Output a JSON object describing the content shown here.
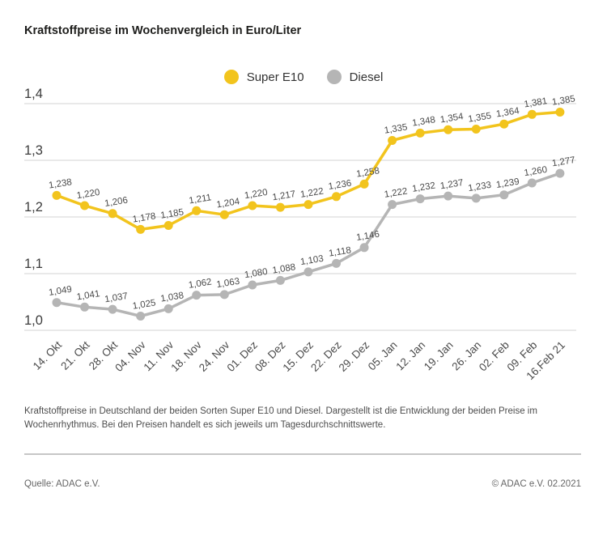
{
  "page": {
    "title": "Kraftstoffpreise im Wochenvergleich in Euro/Liter"
  },
  "legend": [
    {
      "label": "Super E10",
      "color": "#f2c41d"
    },
    {
      "label": "Diesel",
      "color": "#b5b5b5"
    }
  ],
  "chart_data": {
    "type": "line",
    "title": "Kraftstoffpreise im Wochenvergleich in Euro/Liter",
    "unit": "Euro/Liter",
    "categories": [
      "14. Okt",
      "21. Okt",
      "28. Okt",
      "04. Nov",
      "11. Nov",
      "18. Nov",
      "24. Nov",
      "01. Dez",
      "08. Dez",
      "15. Dez",
      "22. Dez",
      "29. Dez",
      "05. Jan",
      "12. Jan",
      "19. Jan",
      "26. Jan",
      "02. Feb",
      "09. Feb",
      "16.Feb 21"
    ],
    "series": [
      {
        "name": "Super E10",
        "color": "#f2c41d",
        "values": [
          1.238,
          1.22,
          1.206,
          1.178,
          1.185,
          1.211,
          1.204,
          1.22,
          1.217,
          1.222,
          1.236,
          1.258,
          1.335,
          1.348,
          1.354,
          1.355,
          1.364,
          1.381,
          1.385
        ]
      },
      {
        "name": "Diesel",
        "color": "#b5b5b5",
        "values": [
          1.049,
          1.041,
          1.037,
          1.025,
          1.038,
          1.062,
          1.063,
          1.08,
          1.088,
          1.103,
          1.118,
          1.146,
          1.222,
          1.232,
          1.237,
          1.233,
          1.239,
          1.26,
          1.277
        ]
      }
    ],
    "y_ticks": {
      "values": [
        1.0,
        1.1,
        1.2,
        1.3,
        1.4
      ],
      "labels": [
        "1,0",
        "1,1",
        "1,2",
        "1,3",
        "1,4"
      ]
    },
    "ylim": [
      1.0,
      1.4
    ],
    "xlabel": "",
    "ylabel": "",
    "grid": "horizontal",
    "legend_position": "top-center",
    "point_labels": "visible",
    "colors": {
      "grid": "#dcdcdc",
      "tick_text": "#3c3c3c",
      "point_label_text": "#4a4a4a",
      "x_tick_text": "#4a4a4a"
    }
  },
  "footnote": {
    "text": "Kraftstoffpreise in Deutschland der beiden Sorten Super E10 und Diesel. Dargestellt ist die Entwicklung der beiden Preise im Wochenrhythmus. Bei den Preisen handelt es sich jeweils um Tagesdurchschnittswerte."
  },
  "footer": {
    "source": "Quelle: ADAC e.V.",
    "copyright": "© ADAC e.V. 02.2021"
  }
}
